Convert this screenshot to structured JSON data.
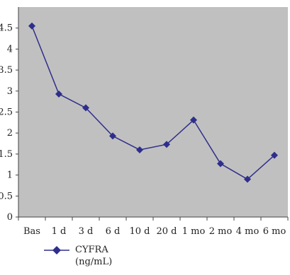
{
  "chart_data": {
    "type": "line",
    "categories": [
      "Bas",
      "1 d",
      "3 d",
      "6 d",
      "10 d",
      "20 d",
      "1 mo",
      "2 mo",
      "4 mo",
      "6 mo"
    ],
    "series": [
      {
        "name_line1": "CYFRA",
        "name_line2": "(ng/mL)",
        "values": [
          4.55,
          2.93,
          2.6,
          1.93,
          1.6,
          1.73,
          2.31,
          1.27,
          0.9,
          1.47
        ],
        "color": "#2e2e8c"
      }
    ],
    "ylim": [
      0,
      5
    ],
    "yticks": [
      "0",
      "0.5",
      "1",
      "1.5",
      "2",
      "2.5",
      "3",
      "3.5",
      "4",
      "4.5"
    ],
    "plot_background": "#c0c0c0",
    "axis_color": "#444444",
    "grid": false,
    "legend_position": "bottom-left"
  }
}
